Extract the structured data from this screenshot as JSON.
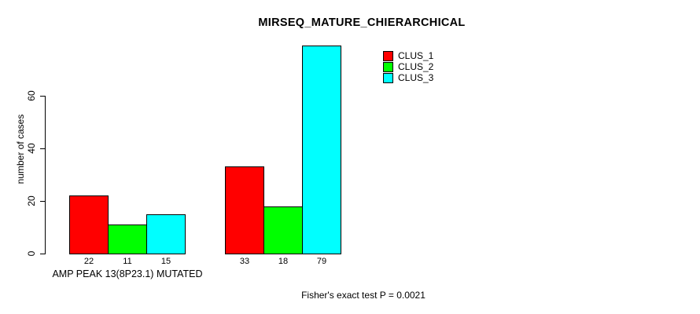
{
  "chart_data": {
    "type": "bar",
    "title": "MIRSEQ_MATURE_CHIERARCHICAL",
    "ylabel": "number of cases",
    "xlabel": "AMP PEAK 13(8P23.1) MUTATED",
    "footnote": "Fisher's exact test P = 0.0021",
    "ylim": [
      0,
      79
    ],
    "yticks": [
      0,
      20,
      40,
      60
    ],
    "grid": false,
    "legend_position": "top-right",
    "categories": [
      "AMP PEAK 13(8P23.1) MUTATED",
      ""
    ],
    "series": [
      {
        "name": "CLUS_1",
        "color": "#ff0000",
        "values": [
          22,
          33
        ]
      },
      {
        "name": "CLUS_2",
        "color": "#00ff00",
        "values": [
          11,
          18
        ]
      },
      {
        "name": "CLUS_3",
        "color": "#00ffff",
        "values": [
          15,
          79
        ]
      }
    ],
    "bar_labels": [
      [
        22,
        11,
        15
      ],
      [
        33,
        18,
        79
      ]
    ],
    "colors": {
      "bar_border": "#000000",
      "axis": "#000000",
      "text": "#000000",
      "background": "#ffffff"
    }
  }
}
